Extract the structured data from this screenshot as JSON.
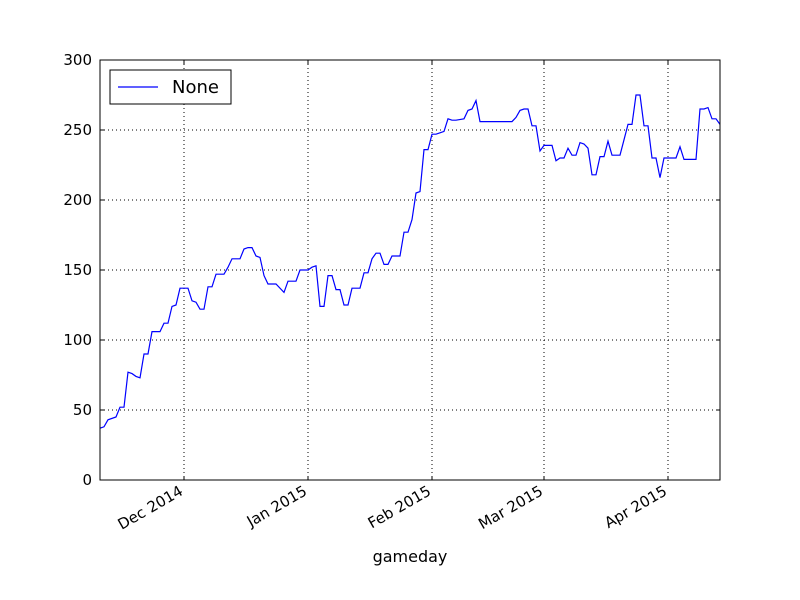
{
  "chart_data": {
    "type": "line",
    "title": "",
    "xlabel": "gameday",
    "ylabel": "",
    "xlim": [
      "2014-11-10",
      "2015-04-14"
    ],
    "ylim": [
      0,
      300
    ],
    "y_ticks": [
      "0",
      "50",
      "100",
      "150",
      "200",
      "250",
      "300"
    ],
    "x_ticks": [
      {
        "date": "2014-12-01",
        "label": "Dec 2014"
      },
      {
        "date": "2015-01-01",
        "label": "Jan 2015"
      },
      {
        "date": "2015-02-01",
        "label": "Feb 2015"
      },
      {
        "date": "2015-03-01",
        "label": "Mar 2015"
      },
      {
        "date": "2015-04-01",
        "label": "Apr 2015"
      }
    ],
    "grid": true,
    "legend_position": "top-left",
    "series": [
      {
        "name": "None",
        "color": "#0000ff",
        "x": [
          "2014-11-10",
          "2014-11-11",
          "2014-11-12",
          "2014-11-14",
          "2014-11-15",
          "2014-11-16",
          "2014-11-17",
          "2014-11-18",
          "2014-11-19",
          "2014-11-20",
          "2014-11-21",
          "2014-11-22",
          "2014-11-23",
          "2014-11-24",
          "2014-11-25",
          "2014-11-26",
          "2014-11-27",
          "2014-11-28",
          "2014-11-29",
          "2014-11-30",
          "2014-12-01",
          "2014-12-02",
          "2014-12-03",
          "2014-12-04",
          "2014-12-05",
          "2014-12-06",
          "2014-12-07",
          "2014-12-08",
          "2014-12-09",
          "2014-12-10",
          "2014-12-11",
          "2014-12-12",
          "2014-12-13",
          "2014-12-14",
          "2014-12-15",
          "2014-12-16",
          "2014-12-17",
          "2014-12-18",
          "2014-12-19",
          "2014-12-20",
          "2014-12-21",
          "2014-12-22",
          "2014-12-23",
          "2014-12-24",
          "2014-12-26",
          "2014-12-27",
          "2014-12-28",
          "2014-12-29",
          "2014-12-30",
          "2014-12-31",
          "2015-01-01",
          "2015-01-02",
          "2015-01-03",
          "2015-01-04",
          "2015-01-05",
          "2015-01-06",
          "2015-01-07",
          "2015-01-08",
          "2015-01-09",
          "2015-01-10",
          "2015-01-11",
          "2015-01-12",
          "2015-01-13",
          "2015-01-14",
          "2015-01-15",
          "2015-01-16",
          "2015-01-17",
          "2015-01-18",
          "2015-01-19",
          "2015-01-20",
          "2015-01-21",
          "2015-01-22",
          "2015-01-23",
          "2015-01-24",
          "2015-01-25",
          "2015-01-26",
          "2015-01-27",
          "2015-01-28",
          "2015-01-29",
          "2015-01-30",
          "2015-01-31",
          "2015-02-01",
          "2015-02-02",
          "2015-02-03",
          "2015-02-04",
          "2015-02-05",
          "2015-02-06",
          "2015-02-07",
          "2015-02-09",
          "2015-02-10",
          "2015-02-11",
          "2015-02-12",
          "2015-02-13",
          "2015-02-21",
          "2015-02-22",
          "2015-02-23",
          "2015-02-24",
          "2015-02-25",
          "2015-02-26",
          "2015-02-27",
          "2015-02-28",
          "2015-03-01",
          "2015-03-02",
          "2015-03-03",
          "2015-03-04",
          "2015-03-05",
          "2015-03-06",
          "2015-03-07",
          "2015-03-08",
          "2015-03-09",
          "2015-03-10",
          "2015-03-11",
          "2015-03-12",
          "2015-03-13",
          "2015-03-14",
          "2015-03-15",
          "2015-03-16",
          "2015-03-17",
          "2015-03-18",
          "2015-03-19",
          "2015-03-20",
          "2015-03-21",
          "2015-03-22",
          "2015-03-23",
          "2015-03-24",
          "2015-03-25",
          "2015-03-26",
          "2015-03-27",
          "2015-03-28",
          "2015-03-29",
          "2015-03-30",
          "2015-03-31",
          "2015-04-01",
          "2015-04-02",
          "2015-04-03",
          "2015-04-04",
          "2015-04-05",
          "2015-04-06",
          "2015-04-07",
          "2015-04-08",
          "2015-04-09",
          "2015-04-10",
          "2015-04-11",
          "2015-04-12",
          "2015-04-13",
          "2015-04-14"
        ],
        "values": [
          37,
          38,
          43,
          45,
          52,
          52,
          77,
          76,
          74,
          73,
          90,
          90,
          106,
          106,
          106,
          112,
          112,
          124,
          125,
          137,
          137,
          137,
          128,
          127,
          122,
          122,
          138,
          138,
          147,
          147,
          147,
          152,
          158,
          158,
          158,
          165,
          166,
          166,
          160,
          159,
          146,
          140,
          140,
          140,
          134,
          142,
          142,
          142,
          150,
          150,
          150,
          152,
          153,
          124,
          124,
          146,
          146,
          136,
          136,
          125,
          125,
          137,
          137,
          137,
          148,
          148,
          158,
          162,
          162,
          154,
          154,
          160,
          160,
          160,
          177,
          177,
          186,
          205,
          206,
          236,
          236,
          247,
          247,
          248,
          249,
          258,
          257,
          257,
          258,
          264,
          265,
          271,
          256,
          256,
          259,
          264,
          265,
          265,
          253,
          253,
          235,
          239,
          239,
          239,
          228,
          230,
          230,
          237,
          232,
          232,
          241,
          240,
          237,
          218,
          218,
          231,
          231,
          242,
          232,
          232,
          232,
          243,
          254,
          254,
          275,
          275,
          253,
          253,
          230,
          230,
          216,
          230,
          230,
          230,
          230,
          238,
          229,
          229,
          229,
          229,
          265,
          265,
          266,
          258,
          258,
          254
        ]
      }
    ]
  }
}
